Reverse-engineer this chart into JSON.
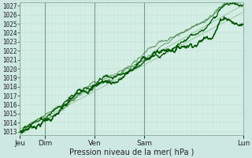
{
  "xlabel": "Pression niveau de la mer( hPa )",
  "ylim": [
    1013,
    1027
  ],
  "yticks": [
    1013,
    1014,
    1015,
    1016,
    1017,
    1018,
    1019,
    1020,
    1021,
    1022,
    1023,
    1024,
    1025,
    1026,
    1027
  ],
  "day_labels": [
    "Jeu",
    "Dim",
    "Ven",
    "Sam",
    "Lun"
  ],
  "day_positions": [
    0,
    24,
    72,
    120,
    216
  ],
  "total_hours": 216,
  "bg_color": "#cce8e0",
  "plot_bg_color": "#d8f0e8",
  "grid_color_minor": "#b8ddd0",
  "grid_color_major": "#99ccbb",
  "line_color_dark": "#005500",
  "line_color_mid": "#337733",
  "dashed_color": "#88bb88",
  "day_line_color": "#779988",
  "xlabel_fontsize": 7,
  "ytick_fontsize": 5.5,
  "xtick_fontsize": 6.5
}
